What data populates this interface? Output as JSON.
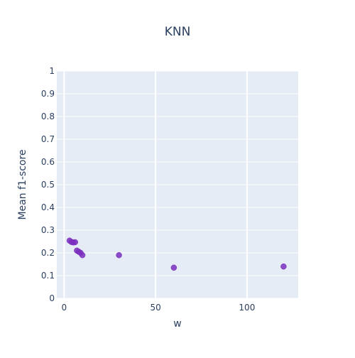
{
  "chart_data": {
    "type": "scatter",
    "title": "KNN",
    "xlabel": "w",
    "ylabel": "Mean f1-score",
    "xlim": [
      -4,
      128
    ],
    "ylim": [
      0,
      1
    ],
    "x_ticks": [
      0,
      50,
      100
    ],
    "x_tick_labels": [
      "0",
      "50",
      "100"
    ],
    "y_ticks": [
      0,
      0.1,
      0.2,
      0.3,
      0.4,
      0.5,
      0.6,
      0.7,
      0.8,
      0.9,
      1
    ],
    "y_tick_labels": [
      "0",
      "0.1",
      "0.2",
      "0.3",
      "0.4",
      "0.5",
      "0.6",
      "0.7",
      "0.8",
      "0.9",
      "1"
    ],
    "grid": true,
    "legend": "none",
    "series": [
      {
        "x": [
          3,
          4,
          5,
          6,
          7,
          8,
          9,
          10,
          30,
          60,
          120
        ],
        "y": [
          0.254,
          0.248,
          0.246,
          0.247,
          0.21,
          0.205,
          0.2,
          0.19,
          0.19,
          0.135,
          0.14
        ],
        "color": "#7b2fbe"
      }
    ],
    "colors": {
      "plot_background": "#e5ecf6",
      "grid": "#ffffff",
      "text": "#2a3f5f",
      "marker": "#7b2fbe"
    }
  }
}
